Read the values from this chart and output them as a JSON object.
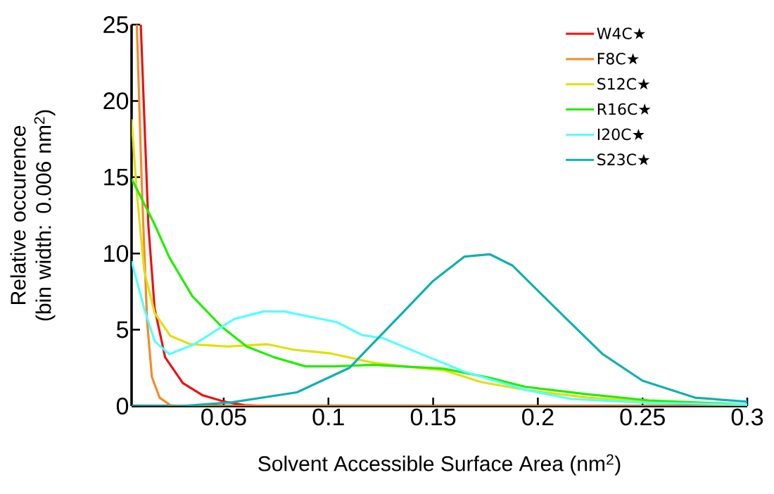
{
  "chart_data": {
    "type": "line",
    "xlabel": "Solvent Accessible Surface Area (nm$^{2}$)",
    "ylabel": "Relative occurence (bin width: 0.006 nm$^{2}$)",
    "xlim": [
      0.006,
      0.3
    ],
    "ylim": [
      0,
      25
    ],
    "xticks": [
      0.05,
      0.1,
      0.15,
      0.2,
      0.25,
      0.3
    ],
    "yticks": [
      0,
      5,
      10,
      15,
      20,
      25
    ],
    "legend": "top right",
    "series": [
      {
        "name": "W4C★",
        "color": "#ee1111",
        "x": [
          0.0104,
          0.014,
          0.017,
          0.022,
          0.0305,
          0.04,
          0.05,
          0.06,
          0.07
        ],
        "values": [
          25,
          11.9,
          6.4,
          3.2,
          1.5,
          0.7,
          0.3,
          0.05,
          0
        ]
      },
      {
        "name": "F8C★",
        "color": "#f28c28",
        "x": [
          0.0085,
          0.011,
          0.0134,
          0.0157,
          0.0194,
          0.0245,
          0.03,
          0.3
        ],
        "values": [
          25,
          14,
          5.6,
          1.9,
          0.55,
          0.05,
          0,
          0
        ]
      },
      {
        "name": "S12C★",
        "color": "#e0e010",
        "x": [
          0.006,
          0.0085,
          0.012,
          0.017,
          0.0245,
          0.034,
          0.052,
          0.071,
          0.083,
          0.101,
          0.121,
          0.136,
          0.155,
          0.173,
          0.194,
          0.224,
          0.253,
          0.297
        ],
        "values": [
          18.8,
          14,
          8.9,
          6.1,
          4.6,
          4.05,
          3.9,
          4.05,
          3.7,
          3.45,
          2.85,
          2.6,
          2.35,
          1.57,
          1.06,
          0.55,
          0.28,
          0.1
        ]
      },
      {
        "name": "R16C★",
        "color": "#22ee00",
        "x": [
          0.006,
          0.017,
          0.024,
          0.035,
          0.049,
          0.061,
          0.074,
          0.089,
          0.103,
          0.121,
          0.155,
          0.177,
          0.194,
          0.224,
          0.253,
          0.3
        ],
        "values": [
          14.9,
          11.9,
          9.75,
          7.2,
          5.2,
          3.9,
          3.2,
          2.6,
          2.6,
          2.7,
          2.45,
          1.85,
          1.26,
          0.77,
          0.37,
          0.1
        ]
      },
      {
        "name": "I20C★",
        "color": "#55ffff",
        "x": [
          0.006,
          0.012,
          0.017,
          0.024,
          0.036,
          0.055,
          0.069,
          0.079,
          0.104,
          0.116,
          0.126,
          0.148,
          0.165,
          0.194,
          0.216,
          0.253,
          0.3
        ],
        "values": [
          9.5,
          6.4,
          4.25,
          3.4,
          4.05,
          5.7,
          6.2,
          6.2,
          5.5,
          4.65,
          4.45,
          3.2,
          2.25,
          1.06,
          0.46,
          0.2,
          0.1
        ]
      },
      {
        "name": "S23C★",
        "color": "#11b0b0",
        "x": [
          0.006,
          0.03,
          0.054,
          0.085,
          0.11,
          0.136,
          0.15,
          0.165,
          0.177,
          0.188,
          0.199,
          0.216,
          0.231,
          0.25,
          0.275,
          0.3
        ],
        "values": [
          0,
          0,
          0.25,
          0.9,
          2.5,
          6.2,
          8.2,
          9.8,
          9.95,
          9.2,
          7.7,
          5.4,
          3.4,
          1.66,
          0.55,
          0.28
        ]
      }
    ]
  }
}
